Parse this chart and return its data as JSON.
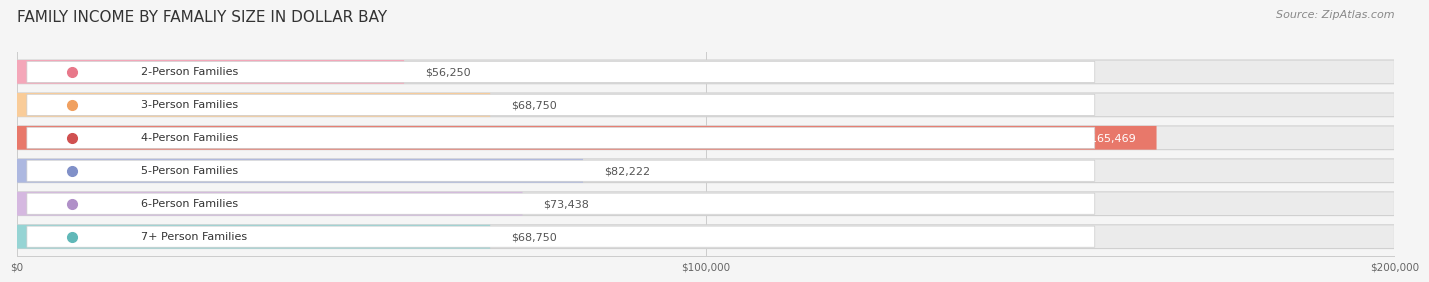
{
  "title": "FAMILY INCOME BY FAMALIY SIZE IN DOLLAR BAY",
  "source": "Source: ZipAtlas.com",
  "categories": [
    "2-Person Families",
    "3-Person Families",
    "4-Person Families",
    "5-Person Families",
    "6-Person Families",
    "7+ Person Families"
  ],
  "values": [
    56250,
    68750,
    165469,
    82222,
    73438,
    68750
  ],
  "labels": [
    "$56,250",
    "$68,750",
    "$165,469",
    "$82,222",
    "$73,438",
    "$68,750"
  ],
  "bar_colors": [
    "#f4a7b9",
    "#f9cc99",
    "#e8786a",
    "#adb8e0",
    "#d5b8e0",
    "#96d4d4"
  ],
  "label_colors": [
    "#555555",
    "#555555",
    "#ffffff",
    "#555555",
    "#555555",
    "#555555"
  ],
  "dot_colors": [
    "#e8788a",
    "#f0a060",
    "#d05050",
    "#8090c8",
    "#b090c8",
    "#60b8b8"
  ],
  "xlim": [
    0,
    200000
  ],
  "xticks": [
    0,
    100000,
    200000
  ],
  "xticklabels": [
    "$0",
    "$100,000",
    "$200,000"
  ],
  "background_color": "#f5f5f5",
  "bar_background": "#ebebeb",
  "title_fontsize": 11,
  "source_fontsize": 8,
  "label_fontsize": 8,
  "category_fontsize": 8
}
